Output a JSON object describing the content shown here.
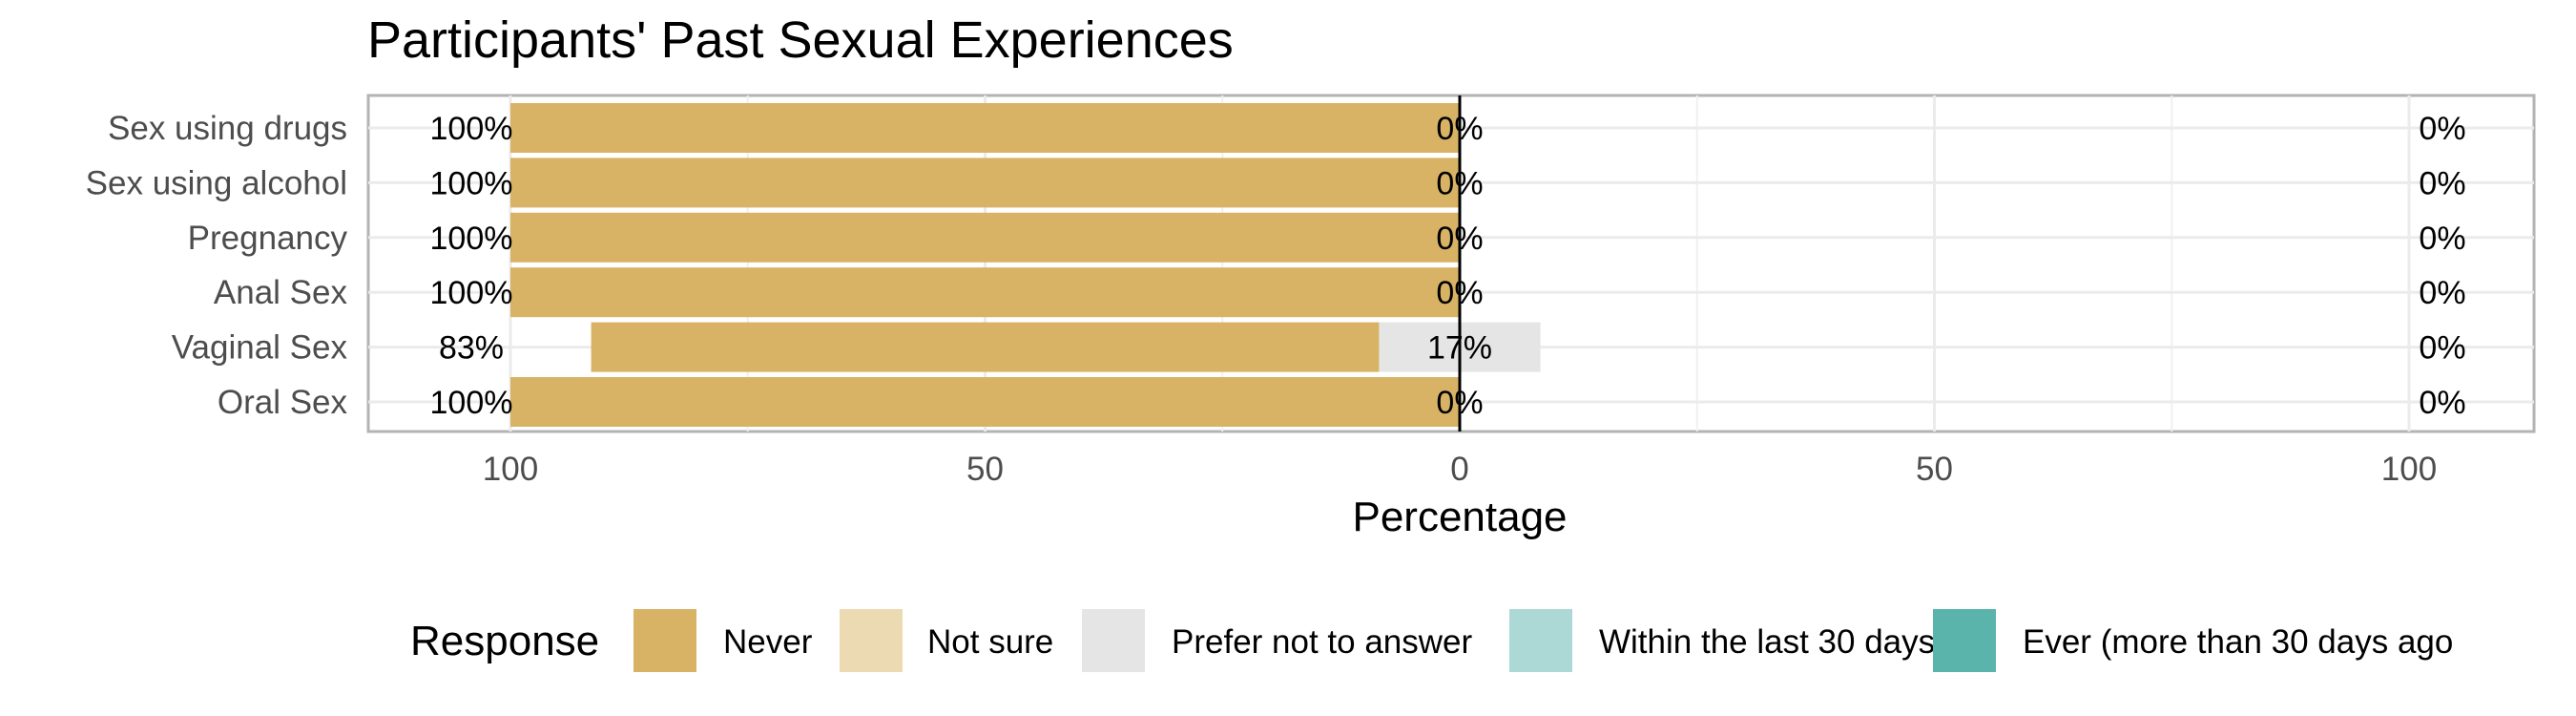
{
  "chart_data": {
    "type": "bar",
    "orientation": "horizontal-diverging",
    "title": "Participants' Past Sexual Experiences",
    "xlabel": "Percentage",
    "ylabel": "",
    "xlim": [
      -100,
      100
    ],
    "x_ticks": [
      {
        "value": -100,
        "label": "100"
      },
      {
        "value": -50,
        "label": "50"
      },
      {
        "value": 0,
        "label": "0"
      },
      {
        "value": 50,
        "label": "50"
      },
      {
        "value": 100,
        "label": "100"
      }
    ],
    "categories": [
      "Sex using drugs",
      "Sex using alcohol",
      "Pregnancy",
      "Anal Sex",
      "Vaginal Sex",
      "Oral Sex"
    ],
    "series": [
      {
        "name": "Never",
        "color": "#d8b365",
        "values": [
          100,
          100,
          100,
          100,
          83,
          100
        ]
      },
      {
        "name": "Not sure",
        "color": "#ecdab3",
        "values": [
          0,
          0,
          0,
          0,
          0,
          0
        ]
      },
      {
        "name": "Prefer not to answer",
        "color": "#e5e5e5",
        "values": [
          0,
          0,
          0,
          0,
          17,
          0
        ]
      },
      {
        "name": "Within the last 30 days",
        "color": "#acd9d5",
        "values": [
          0,
          0,
          0,
          0,
          0,
          0
        ]
      },
      {
        "name": "Ever (more than 30 days ago",
        "color": "#5ab4ac",
        "values": [
          0,
          0,
          0,
          0,
          0,
          0
        ]
      }
    ],
    "labels_left": [
      "100%",
      "100%",
      "100%",
      "100%",
      "83%",
      "100%"
    ],
    "labels_center": [
      "0%",
      "0%",
      "0%",
      "0%",
      "17%",
      "0%"
    ],
    "labels_right": [
      "0%",
      "0%",
      "0%",
      "0%",
      "0%",
      "0%"
    ],
    "grid": true,
    "legend": {
      "title": "Response",
      "position": "bottom"
    }
  }
}
